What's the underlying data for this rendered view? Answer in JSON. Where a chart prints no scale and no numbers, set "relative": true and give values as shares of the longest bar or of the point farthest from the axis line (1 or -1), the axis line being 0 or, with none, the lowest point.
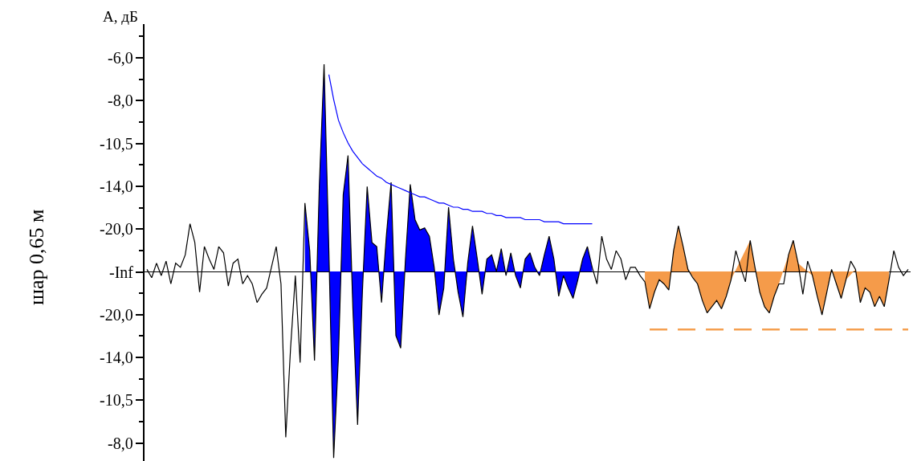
{
  "chart_data": {
    "type": "line",
    "ylabel": "A, дБ",
    "relative": true,
    "annotations": [
      "-6,0",
      "-8,0",
      "-10,5",
      "-14,0",
      "-20,0",
      "-Inf",
      "-20,0",
      "-14,0",
      "-10,5",
      "-8,0",
      "шар 0,65 м"
    ],
    "categories": [
      null,
      null,
      null,
      null,
      null,
      null,
      null,
      null,
      null,
      null,
      null,
      null,
      null,
      null,
      null,
      null,
      null,
      null,
      null,
      null,
      null,
      null,
      null,
      null,
      null,
      null,
      null,
      null,
      null,
      null,
      null,
      null,
      null,
      null,
      null,
      null,
      null,
      null,
      null,
      null,
      null,
      null,
      null,
      null,
      null,
      null,
      null,
      null,
      null,
      null,
      null,
      null,
      null,
      null,
      null,
      null,
      null,
      null,
      null,
      null,
      null,
      null,
      null,
      null,
      null,
      null,
      null,
      null,
      null,
      null,
      null,
      null,
      null,
      null,
      null,
      null,
      null,
      null,
      null,
      null,
      null,
      null,
      null,
      null,
      null,
      null,
      null,
      null,
      null,
      null,
      null,
      null,
      null,
      null,
      null,
      null,
      null,
      null,
      null,
      null,
      null,
      null,
      null,
      null,
      null,
      null,
      null,
      null,
      null,
      null,
      null,
      null,
      null,
      null,
      null,
      null,
      null,
      null,
      null,
      null,
      null,
      null,
      null,
      null,
      null,
      null,
      null,
      null,
      null,
      null,
      null,
      null,
      null,
      null,
      null,
      null,
      null,
      null,
      null,
      null,
      null,
      null,
      null,
      null,
      null,
      null,
      null,
      null,
      null,
      null,
      null,
      null,
      null,
      null,
      null,
      null,
      null,
      null,
      null,
      null
    ],
    "series": [
      {
        "type": "area",
        "color": "#0000ff",
        "values": [
          null,
          null,
          null,
          null,
          null,
          null,
          null,
          null,
          null,
          null,
          null,
          null,
          null,
          null,
          null,
          null,
          null,
          null,
          null,
          null,
          null,
          null,
          null,
          null,
          null,
          null,
          null,
          null,
          null,
          null,
          null,
          null,
          null,
          0.33,
          0.1,
          -0.43,
          0.41,
          1,
          0.1,
          -0.9,
          -0.41,
          0.37,
          0.56,
          -0.17,
          -0.74,
          -0.1,
          0.41,
          0.14,
          0.12,
          -0.15,
          0.17,
          0.43,
          -0.31,
          -0.37,
          0.06,
          0.42,
          0.25,
          0.2,
          0.21,
          0.17,
          0.02,
          -0.21,
          -0.08,
          0.31,
          0.06,
          -0.1,
          -0.22,
          0.04,
          0.22,
          0.06,
          -0.11,
          0.06,
          0.08,
          0,
          0.11,
          -0.02,
          0.09,
          -0.02,
          -0.08,
          0.06,
          0.09,
          0.02,
          -0.02,
          0.08,
          0.17,
          0.06,
          -0.12,
          -0.02,
          -0.08,
          -0.13,
          -0.04,
          0.06,
          0.12,
          0.02,
          null,
          null,
          null,
          null,
          null,
          null,
          null,
          null,
          null,
          null,
          null,
          null,
          null,
          null,
          null,
          null,
          null,
          null,
          null,
          null,
          null,
          null,
          null,
          null,
          null,
          null,
          null,
          null,
          null,
          null,
          null,
          null,
          null,
          null,
          null,
          null,
          null,
          null,
          null,
          null,
          null,
          null,
          null,
          null,
          null,
          null,
          null,
          null,
          null,
          null,
          null,
          null,
          null,
          null,
          null,
          null,
          null,
          null,
          null,
          null,
          null,
          null,
          null,
          null,
          null,
          null
        ]
      },
      {
        "type": "area",
        "color": "#f59b4a",
        "values": [
          null,
          null,
          null,
          null,
          null,
          null,
          null,
          null,
          null,
          null,
          null,
          null,
          null,
          null,
          null,
          null,
          null,
          null,
          null,
          null,
          null,
          null,
          null,
          null,
          null,
          null,
          null,
          null,
          null,
          null,
          null,
          null,
          null,
          null,
          null,
          null,
          null,
          null,
          null,
          null,
          null,
          null,
          null,
          null,
          null,
          null,
          null,
          null,
          null,
          null,
          null,
          null,
          null,
          null,
          null,
          null,
          null,
          null,
          null,
          null,
          null,
          null,
          null,
          null,
          null,
          null,
          null,
          null,
          null,
          null,
          null,
          null,
          null,
          null,
          null,
          null,
          null,
          null,
          null,
          null,
          null,
          null,
          null,
          null,
          null,
          null,
          null,
          null,
          null,
          null,
          null,
          null,
          null,
          null,
          null,
          null,
          null,
          null,
          null,
          null,
          null,
          null,
          null,
          null,
          -0.05,
          -0.18,
          -0.1,
          -0.04,
          -0.06,
          -0.09,
          0.1,
          0.22,
          0.12,
          0.01,
          null,
          -0.06,
          -0.14,
          -0.2,
          -0.17,
          -0.14,
          -0.18,
          -0.12,
          -0.04,
          null,
          null,
          null,
          0.15,
          0.02,
          -0.1,
          -0.17,
          -0.2,
          -0.12,
          -0.06,
          null,
          0.08,
          0.15,
          0.04,
          null,
          null,
          -0.02,
          -0.12,
          -0.21,
          -0.1,
          0.01,
          -0.06,
          -0.13,
          -0.04,
          null,
          0.01,
          -0.15,
          -0.08,
          -0.1,
          -0.17,
          -0.12,
          -0.17,
          -0.04,
          null,
          null,
          null,
          null
        ]
      },
      {
        "type": "line",
        "color": "#000000",
        "values": [
          0.01,
          -0.03,
          0.04,
          -0.02,
          0.05,
          -0.06,
          0.04,
          0.02,
          0.08,
          0.23,
          0.14,
          -0.1,
          0.12,
          0.06,
          0.01,
          0.12,
          0.09,
          -0.07,
          0.04,
          0.06,
          -0.06,
          -0.02,
          -0.06,
          -0.15,
          -0.11,
          -0.08,
          0.02,
          0.12,
          -0.06,
          -0.8,
          -0.37,
          -0.02,
          -0.44,
          0.33,
          0.1,
          -0.43,
          0.41,
          1,
          0.1,
          -0.9,
          -0.41,
          0.37,
          0.56,
          -0.17,
          -0.74,
          -0.1,
          0.41,
          0.14,
          0.12,
          -0.15,
          0.17,
          0.43,
          -0.31,
          -0.37,
          0.06,
          0.42,
          0.25,
          0.2,
          0.21,
          0.17,
          0.02,
          -0.21,
          -0.08,
          0.31,
          0.06,
          -0.1,
          -0.22,
          0.04,
          0.22,
          0.06,
          -0.11,
          0.06,
          0.08,
          0,
          0.11,
          -0.02,
          0.09,
          -0.02,
          -0.08,
          0.06,
          0.09,
          0.02,
          -0.02,
          0.08,
          0.17,
          0.06,
          -0.12,
          -0.02,
          -0.08,
          -0.13,
          -0.04,
          0.06,
          0.12,
          0.02,
          -0.06,
          0.17,
          0.06,
          0.01,
          0.1,
          0.06,
          -0.04,
          0.02,
          0.02,
          -0.02,
          -0.05,
          -0.18,
          -0.1,
          -0.04,
          -0.06,
          -0.09,
          0.1,
          0.22,
          0.12,
          0.01,
          -0.03,
          -0.06,
          -0.14,
          -0.2,
          -0.17,
          -0.14,
          -0.18,
          -0.12,
          -0.04,
          0.1,
          0.02,
          -0.05,
          0.15,
          0.02,
          -0.1,
          -0.17,
          -0.2,
          -0.12,
          -0.06,
          -0.06,
          0.08,
          0.15,
          0.04,
          -0.11,
          0.05,
          -0.02,
          -0.12,
          -0.21,
          -0.1,
          0.01,
          -0.06,
          -0.13,
          -0.04,
          0.05,
          0.01,
          -0.15,
          -0.08,
          -0.1,
          -0.17,
          -0.12,
          -0.17,
          -0.04,
          0.1,
          0.02,
          -0.02,
          0.01
        ]
      },
      {
        "type": "line",
        "color": "#0000ff",
        "values": [
          null,
          null,
          null,
          null,
          null,
          null,
          null,
          null,
          null,
          null,
          null,
          null,
          null,
          null,
          null,
          null,
          null,
          null,
          null,
          null,
          null,
          null,
          null,
          null,
          null,
          null,
          null,
          null,
          null,
          null,
          null,
          null,
          null,
          null,
          null,
          null,
          null,
          null,
          0.95,
          0.83,
          0.73,
          0.67,
          0.62,
          0.58,
          0.55,
          0.52,
          0.5,
          0.48,
          0.46,
          0.45,
          0.43,
          0.42,
          0.41,
          0.4,
          0.39,
          0.38,
          0.37,
          0.36,
          0.36,
          0.35,
          0.34,
          0.33,
          0.33,
          0.32,
          0.31,
          0.31,
          0.3,
          0.3,
          0.29,
          0.29,
          0.29,
          0.28,
          0.28,
          0.27,
          0.27,
          0.26,
          0.26,
          0.26,
          0.26,
          0.25,
          0.25,
          0.25,
          0.25,
          0.24,
          0.24,
          0.24,
          0.24,
          0.23,
          0.23,
          0.23,
          0.23,
          0.23,
          0.23,
          0.23,
          null,
          null,
          null,
          null,
          null,
          null,
          null,
          null,
          null,
          null,
          null,
          null,
          null,
          null,
          null,
          null,
          null,
          null,
          null,
          null,
          null,
          null,
          null,
          null,
          null,
          null,
          null,
          null,
          null,
          null,
          null,
          null,
          null,
          null,
          null,
          null,
          null,
          null,
          null,
          null,
          null,
          null,
          null,
          null,
          null,
          null,
          null,
          null,
          null,
          null,
          null,
          null,
          null,
          null,
          null,
          null,
          null,
          null,
          null,
          null,
          null,
          null,
          null,
          null,
          null,
          null
        ]
      },
      {
        "type": "line",
        "color": "#f5a050",
        "line_style": "dashed",
        "values": [
          null,
          null,
          null,
          null,
          null,
          null,
          null,
          null,
          null,
          null,
          null,
          null,
          null,
          null,
          null,
          null,
          null,
          null,
          null,
          null,
          null,
          null,
          null,
          null,
          null,
          null,
          null,
          null,
          null,
          null,
          null,
          null,
          null,
          null,
          null,
          null,
          null,
          null,
          null,
          null,
          null,
          null,
          null,
          null,
          null,
          null,
          null,
          null,
          null,
          null,
          null,
          null,
          null,
          null,
          null,
          null,
          null,
          null,
          null,
          null,
          null,
          null,
          null,
          null,
          null,
          null,
          null,
          null,
          null,
          null,
          null,
          null,
          null,
          null,
          null,
          null,
          null,
          null,
          null,
          null,
          null,
          null,
          null,
          null,
          null,
          null,
          null,
          null,
          null,
          null,
          null,
          null,
          null,
          null,
          null,
          null,
          null,
          null,
          null,
          null,
          null,
          null,
          null,
          null,
          null,
          -0.28,
          -0.28,
          -0.28,
          -0.28,
          -0.28,
          -0.28,
          -0.28,
          -0.28,
          -0.28,
          -0.28,
          -0.28,
          -0.28,
          -0.28,
          -0.28,
          -0.28,
          -0.28,
          -0.28,
          -0.28,
          -0.28,
          -0.28,
          -0.28,
          -0.28,
          -0.28,
          -0.28,
          -0.28,
          -0.28,
          -0.28,
          -0.28,
          -0.28,
          -0.28,
          -0.28,
          -0.28,
          -0.28,
          -0.28,
          -0.28,
          -0.28,
          -0.28,
          -0.28,
          -0.28,
          -0.28,
          -0.28,
          -0.28,
          -0.28,
          -0.28,
          -0.28,
          -0.28,
          -0.28,
          -0.28,
          -0.28,
          -0.28,
          -0.28,
          -0.28,
          -0.28,
          -0.28,
          -0.28
        ]
      }
    ]
  }
}
